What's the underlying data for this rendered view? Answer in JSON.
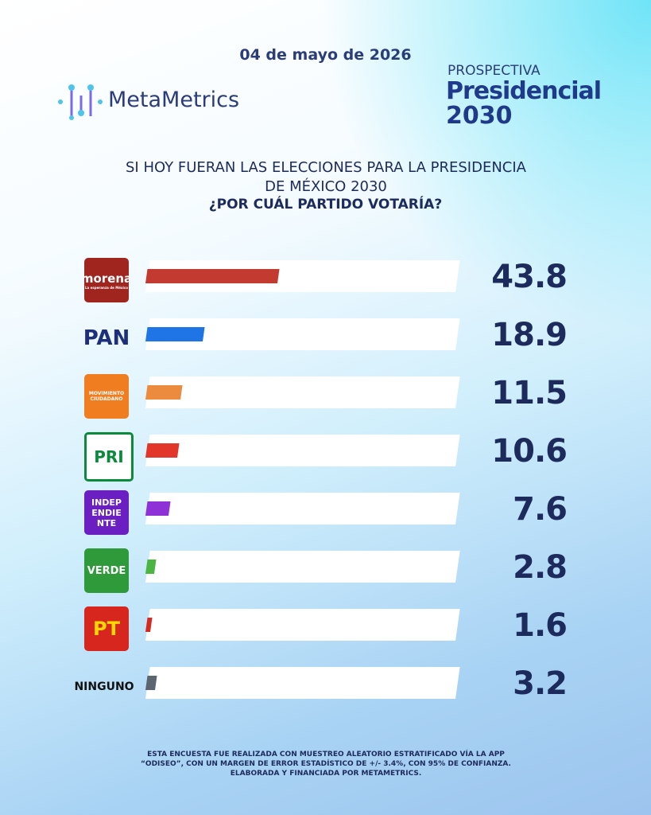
{
  "header": {
    "date": "04 de mayo de 2026",
    "brand": "MetaMetrics",
    "program_kicker": "PROSPECTIVA",
    "program_title": "Presidencial",
    "program_year": "2030"
  },
  "chart_data": {
    "type": "bar",
    "title": "SI HOY FUERAN LAS ELECCIONES PARA LA PRESIDENCIA DE MÉXICO 2030",
    "subtitle": "¿POR CUÁL PARTIDO VOTARÍA?",
    "categories": [
      "morena",
      "PAN",
      "MOVIMIENTO CIUDADANO",
      "PRI",
      "INDEPENDIENTE",
      "VERDE",
      "PT",
      "NINGUNO"
    ],
    "tagline": "La esperanza de México",
    "values": [
      43.8,
      18.9,
      11.5,
      10.6,
      7.6,
      2.8,
      1.6,
      3.2
    ],
    "colors": [
      "#c23a30",
      "#1f74e6",
      "#ec8b3e",
      "#e2362a",
      "#8e32d8",
      "#4bb543",
      "#d32b22",
      "#5c6671"
    ]
  },
  "footnote": "ESTA ENCUESTA FUE REALIZADA CON MUESTREO ALEATORIO ESTRATIFICADO VÍA LA APP “ODISEO”, CON UN MARGEN DE ERROR ESTADÍSTICO DE +/- 3.4%, CON 95% DE CONFIANZA. ELABORADA Y FINANCIADA POR METAMETRICS."
}
